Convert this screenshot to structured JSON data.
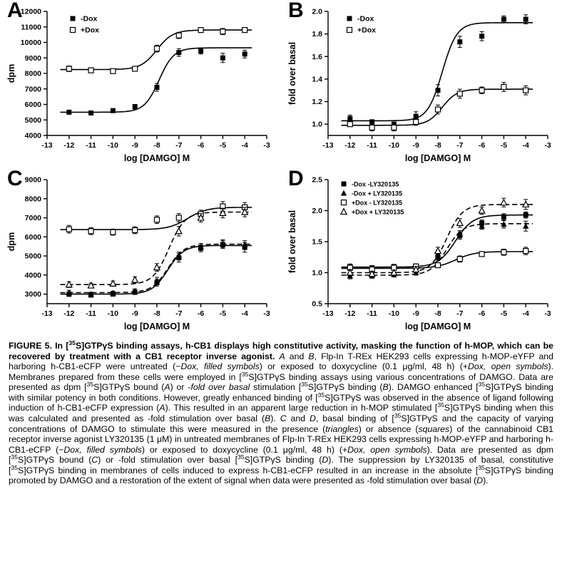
{
  "figure": {
    "caption": {
      "segments": [
        {
          "t": "FIGURE 5. ",
          "b": true
        },
        {
          "t": "In [",
          "b": true
        },
        {
          "t": "35",
          "b": true,
          "sup": true
        },
        {
          "t": "S]GTPγS binding assays, h-CB1 displays high constitutive activity, masking the function of h-MOP, which can be recovered by treatment with a CB1 receptor inverse agonist. ",
          "b": true
        },
        {
          "t": "A",
          "i": true
        },
        {
          "t": " and "
        },
        {
          "t": "B",
          "i": true
        },
        {
          "t": ", Flp-In T-REx HEK293 cells expressing h-MOP-eYFP and harboring h-CB1-eCFP were untreated (−"
        },
        {
          "t": "Dox, filled symbols",
          "i": true
        },
        {
          "t": ") or exposed to doxycycline (0.1 μg/ml, 48 h) (+"
        },
        {
          "t": "Dox, open symbols",
          "i": true
        },
        {
          "t": "). Membranes prepared from these cells were employed in ["
        },
        {
          "t": "35",
          "sup": true
        },
        {
          "t": "S]GTPγS binding assays using various concentrations of DAMGO. Data are presented as dpm ["
        },
        {
          "t": "35",
          "sup": true
        },
        {
          "t": "S]GTPγS bound ("
        },
        {
          "t": "A",
          "i": true
        },
        {
          "t": ") or -"
        },
        {
          "t": "fold over basal",
          "i": true
        },
        {
          "t": " stimulation ["
        },
        {
          "t": "35",
          "sup": true
        },
        {
          "t": "S]GTPγS binding ("
        },
        {
          "t": "B",
          "i": true
        },
        {
          "t": "). DAMGO enhanced ["
        },
        {
          "t": "35",
          "sup": true
        },
        {
          "t": "S]GTPγS binding with similar potency in both conditions. However, greatly enhanced binding of ["
        },
        {
          "t": "35",
          "sup": true
        },
        {
          "t": "S]GTPγS was observed in the absence of ligand following induction of h-CB1-eCFP expression ("
        },
        {
          "t": "A",
          "i": true
        },
        {
          "t": "). This resulted in an apparent large reduction in h-MOP stimulated ["
        },
        {
          "t": "35",
          "sup": true
        },
        {
          "t": "S]GTPγS binding when this was calculated and presented as -fold stimulation over basal ("
        },
        {
          "t": "B",
          "i": true
        },
        {
          "t": "). "
        },
        {
          "t": "C",
          "i": true
        },
        {
          "t": " and "
        },
        {
          "t": "D",
          "i": true
        },
        {
          "t": ", basal binding of ["
        },
        {
          "t": "35",
          "sup": true
        },
        {
          "t": "S]GTPγS and the capacity of varying concentrations of DAMGO to stimulate this were measured in the presence ("
        },
        {
          "t": "triangles",
          "i": true
        },
        {
          "t": ") or absence ("
        },
        {
          "t": "squares",
          "i": true
        },
        {
          "t": ") of the cannabinoid CB1 receptor inverse agonist LY320135 (1 μM) in untreated membranes of Flp-In T-REx HEK293 cells expressing h-MOP-eYFP and harboring h-CB1-eCFP (−"
        },
        {
          "t": "Dox, filled symbols",
          "i": true
        },
        {
          "t": ") or exposed to doxycycline (0.1 μg/ml, 48 h) (+"
        },
        {
          "t": "Dox, open symbols",
          "i": true
        },
        {
          "t": "). Data are presented as dpm ["
        },
        {
          "t": "35",
          "sup": true
        },
        {
          "t": "S]GTPγS bound ("
        },
        {
          "t": "C",
          "i": true
        },
        {
          "t": ") or -fold stimulation over basal ["
        },
        {
          "t": "35",
          "sup": true
        },
        {
          "t": "S]GTPγS binding ("
        },
        {
          "t": "D",
          "i": true
        },
        {
          "t": "). The suppression by LY320135 of basal, constitutive ["
        },
        {
          "t": "35",
          "sup": true
        },
        {
          "t": "S]GTPγS binding in membranes of cells induced to express h-CB1-eCFP resulted in an increase in the absolute ["
        },
        {
          "t": "35",
          "sup": true
        },
        {
          "t": "S]GTPγS binding promoted by DAMGO and a restoration of the extent of signal when data were presented as -fold stimulation over basal ("
        },
        {
          "t": "D",
          "i": true
        },
        {
          "t": ")."
        }
      ]
    }
  },
  "chart_data": [
    {
      "type": "scatter",
      "panel": "A",
      "xlabel": "log [DAMGO] M",
      "ylabel": "dpm",
      "xlim": [
        -13,
        -3
      ],
      "ylim": [
        4000,
        12000
      ],
      "xticks": [
        -13,
        -12,
        -11,
        -10,
        -9,
        -8,
        -7,
        -6,
        -5,
        -4,
        -3
      ],
      "yticks": [
        4000,
        5000,
        6000,
        7000,
        8000,
        9000,
        10000,
        11000,
        12000
      ],
      "x": [
        -12,
        -11,
        -10,
        -9,
        -8,
        -7,
        -6,
        -5,
        -4
      ],
      "legend_show": true,
      "series": [
        {
          "name": "-Dox",
          "marker": "filled-square",
          "line": "solid",
          "values": [
            5500,
            5450,
            5600,
            5850,
            7100,
            9350,
            9450,
            9000,
            9250
          ],
          "errors": [
            120,
            100,
            100,
            150,
            250,
            250,
            200,
            300,
            250
          ],
          "fit": {
            "bottom": 5500,
            "top": 9650,
            "logec50": -7.9,
            "hill": 1.3
          }
        },
        {
          "name": "+Dox",
          "marker": "open-square",
          "line": "solid",
          "values": [
            8300,
            8200,
            8150,
            8300,
            9600,
            10450,
            10800,
            10700,
            10800
          ],
          "errors": [
            180,
            150,
            140,
            150,
            220,
            200,
            160,
            200,
            150
          ],
          "fit": {
            "bottom": 8250,
            "top": 10800,
            "logec50": -8.0,
            "hill": 1.2
          }
        }
      ]
    },
    {
      "type": "scatter",
      "panel": "B",
      "xlabel": "log [DAMGO] M",
      "ylabel": "fold over basal",
      "xlim": [
        -13,
        -3
      ],
      "ylim": [
        0.9,
        2.0
      ],
      "xticks": [
        -13,
        -12,
        -11,
        -10,
        -9,
        -8,
        -7,
        -6,
        -5,
        -4,
        -3
      ],
      "yticks": [
        1.0,
        1.2,
        1.4,
        1.6,
        1.8,
        2.0
      ],
      "x": [
        -12,
        -11,
        -10,
        -9,
        -8,
        -7,
        -6,
        -5,
        -4
      ],
      "legend_show": true,
      "series": [
        {
          "name": "-Dox",
          "marker": "filled-square",
          "line": "solid",
          "values": [
            1.05,
            1.02,
            1.0,
            1.07,
            1.3,
            1.73,
            1.78,
            1.93,
            1.93
          ],
          "errors": [
            0.03,
            0.02,
            0.02,
            0.04,
            0.05,
            0.05,
            0.04,
            0.03,
            0.04
          ],
          "fit": {
            "bottom": 1.03,
            "top": 1.9,
            "logec50": -7.8,
            "hill": 1.3
          }
        },
        {
          "name": "+Dox",
          "marker": "open-square",
          "line": "solid",
          "values": [
            1.0,
            0.97,
            0.97,
            1.02,
            1.13,
            1.27,
            1.3,
            1.33,
            1.3
          ],
          "errors": [
            0.02,
            0.03,
            0.03,
            0.03,
            0.04,
            0.04,
            0.03,
            0.04,
            0.04
          ],
          "fit": {
            "bottom": 0.99,
            "top": 1.31,
            "logec50": -7.8,
            "hill": 1.3
          }
        }
      ]
    },
    {
      "type": "scatter",
      "panel": "C",
      "xlabel": "log [DAMGO] M",
      "ylabel": "dpm",
      "xlim": [
        -13,
        -3
      ],
      "ylim": [
        2500,
        9000
      ],
      "xticks": [
        -13,
        -12,
        -11,
        -10,
        -9,
        -8,
        -7,
        -6,
        -5,
        -4,
        -3
      ],
      "yticks": [
        3000,
        4000,
        5000,
        6000,
        7000,
        8000,
        9000
      ],
      "x": [
        -12,
        -11,
        -10,
        -9,
        -8,
        -7,
        -6,
        -5,
        -4
      ],
      "legend_show": false,
      "series": [
        {
          "name": "-Dox -LY320135",
          "marker": "filled-square",
          "line": "solid",
          "values": [
            3000,
            2950,
            3000,
            3100,
            3600,
            4900,
            5400,
            5600,
            5450
          ],
          "errors": [
            120,
            100,
            100,
            120,
            180,
            220,
            180,
            200,
            250
          ],
          "fit": {
            "bottom": 3000,
            "top": 5550,
            "logec50": -7.5,
            "hill": 1.2
          }
        },
        {
          "name": "-Dox + LY320135",
          "marker": "filled-triangle",
          "line": "dashed",
          "values": [
            3080,
            3000,
            3060,
            3160,
            3700,
            5000,
            5480,
            5650,
            5600
          ],
          "errors": [
            120,
            100,
            100,
            120,
            180,
            200,
            180,
            200,
            200
          ],
          "fit": {
            "bottom": 3080,
            "top": 5620,
            "logec50": -7.5,
            "hill": 1.2
          }
        },
        {
          "name": "+Dox - LY320135",
          "marker": "open-square",
          "line": "solid",
          "values": [
            6400,
            6300,
            6250,
            6350,
            6900,
            7000,
            7200,
            7600,
            7550
          ],
          "errors": [
            200,
            180,
            160,
            180,
            200,
            220,
            200,
            250,
            250
          ],
          "fit": {
            "bottom": 6380,
            "top": 7550,
            "logec50": -6.6,
            "hill": 1.0
          }
        },
        {
          "name": "+Dox + LY320135",
          "marker": "open-triangle",
          "line": "dashed",
          "values": [
            3500,
            3450,
            3550,
            3750,
            4400,
            6300,
            7000,
            7250,
            7300
          ],
          "errors": [
            150,
            130,
            140,
            160,
            200,
            250,
            220,
            250,
            250
          ],
          "fit": {
            "bottom": 3500,
            "top": 7300,
            "logec50": -7.45,
            "hill": 1.2
          }
        }
      ]
    },
    {
      "type": "scatter",
      "panel": "D",
      "xlabel": "log [DAMGO] M",
      "ylabel": "fold over basal",
      "xlim": [
        -13,
        -3
      ],
      "ylim": [
        0.5,
        2.5
      ],
      "xticks": [
        -13,
        -12,
        -11,
        -10,
        -9,
        -8,
        -7,
        -6,
        -5,
        -4,
        -3
      ],
      "yticks": [
        0.5,
        1.0,
        1.5,
        2.0,
        2.5
      ],
      "x": [
        -12,
        -11,
        -10,
        -9,
        -8,
        -7,
        -6,
        -5,
        -4
      ],
      "legend_show": true,
      "series": [
        {
          "name": "-Dox -LY320135",
          "marker": "filled-square",
          "line": "solid",
          "values": [
            1.1,
            1.08,
            1.1,
            1.1,
            1.25,
            1.6,
            1.8,
            1.9,
            1.93
          ],
          "errors": [
            0.04,
            0.03,
            0.03,
            0.04,
            0.05,
            0.06,
            0.05,
            0.05,
            0.05
          ],
          "fit": {
            "bottom": 1.09,
            "top": 1.93,
            "logec50": -7.2,
            "hill": 1.1
          }
        },
        {
          "name": "-Dox + LY320135",
          "marker": "filled-triangle",
          "line": "dashed",
          "values": [
            0.95,
            0.95,
            0.97,
            1.0,
            1.3,
            1.62,
            1.75,
            1.78,
            1.75
          ],
          "errors": [
            0.05,
            0.04,
            0.04,
            0.04,
            0.06,
            0.06,
            0.05,
            0.06,
            0.08
          ],
          "fit": {
            "bottom": 0.96,
            "top": 1.79,
            "logec50": -7.6,
            "hill": 1.2
          }
        },
        {
          "name": "+Dox - LY320135",
          "marker": "open-square",
          "line": "solid",
          "values": [
            1.08,
            1.05,
            1.08,
            1.1,
            1.12,
            1.22,
            1.3,
            1.33,
            1.35
          ],
          "errors": [
            0.04,
            0.03,
            0.03,
            0.04,
            0.04,
            0.05,
            0.04,
            0.05,
            0.06
          ],
          "fit": {
            "bottom": 1.07,
            "top": 1.34,
            "logec50": -7.2,
            "hill": 1.0
          }
        },
        {
          "name": "+Dox + LY320135",
          "marker": "open-triangle",
          "line": "dashed",
          "values": [
            1.0,
            0.98,
            1.0,
            1.05,
            1.35,
            1.8,
            2.0,
            2.13,
            2.1
          ],
          "errors": [
            0.05,
            0.04,
            0.04,
            0.05,
            0.06,
            0.07,
            0.06,
            0.07,
            0.08
          ],
          "fit": {
            "bottom": 1.0,
            "top": 2.1,
            "logec50": -7.6,
            "hill": 1.2
          }
        }
      ]
    }
  ]
}
